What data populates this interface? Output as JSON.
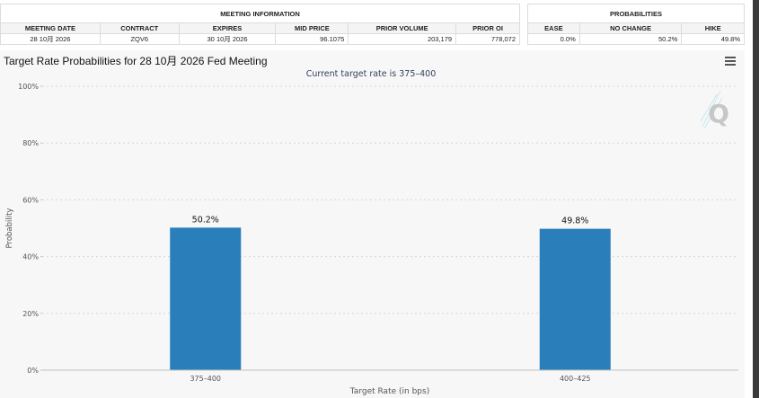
{
  "meeting_info": {
    "group_label": "MEETING INFORMATION",
    "headers": [
      "MEETING DATE",
      "CONTRACT",
      "EXPIRES",
      "MID PRICE",
      "PRIOR VOLUME",
      "PRIOR OI"
    ],
    "row": {
      "meeting_date": "28 10月 2026",
      "contract": "ZQV6",
      "expires": "30 10月 2026",
      "mid_price": "96.1075",
      "prior_volume": "203,179",
      "prior_oi": "778,072"
    }
  },
  "probabilities": {
    "group_label": "PROBABILITIES",
    "headers": [
      "EASE",
      "NO CHANGE",
      "HIKE"
    ],
    "row": {
      "ease": "0.0%",
      "no_change": "50.2%",
      "hike": "49.8%"
    }
  },
  "chart_title": "Target Rate Probabilities for 28 10月 2026 Fed Meeting",
  "menu_icon": "hamburger-menu-icon",
  "watermark_icon": "q-logo",
  "colors": {
    "bar": "#2a7fbb",
    "grid": "#d7d7d7",
    "panel_bg": "#f7f7f7",
    "subtitle": "#333f5c"
  },
  "chart_data": {
    "type": "bar",
    "title": "Target Rate Probabilities for 28 10月 2026 Fed Meeting",
    "subtitle": "Current target rate is 375–400",
    "categories": [
      "375–400",
      "400–425"
    ],
    "values": [
      50.2,
      49.8
    ],
    "data_labels": [
      "50.2%",
      "49.8%"
    ],
    "xlabel": "Target Rate (in bps)",
    "ylabel": "Probability",
    "ylim": [
      0,
      100
    ],
    "yticks": [
      0,
      20,
      40,
      60,
      80,
      100
    ],
    "ytick_labels": [
      "0%",
      "20%",
      "40%",
      "60%",
      "80%",
      "100%"
    ],
    "grid": true,
    "legend": "none"
  }
}
